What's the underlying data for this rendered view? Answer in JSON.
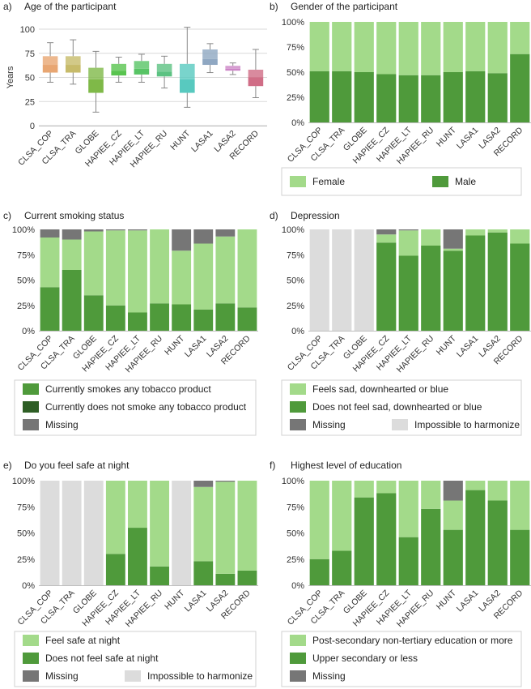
{
  "colors": {
    "female": "#a3da8a",
    "male": "#4f9a3b",
    "dark_green": "#2e5e25",
    "missing": "#767676",
    "impossible": "#dcdcdc",
    "grid": "#d9d9d9",
    "axis": "#bfbfbf",
    "legend_border": "#d0d0d0"
  },
  "box_colors": [
    "#e8a672",
    "#c7bb6a",
    "#7fb948",
    "#59c44f",
    "#58c465",
    "#5cc282",
    "#58c9bf",
    "#8fa7c2",
    "#cc84c6",
    "#d06d86"
  ],
  "chart_data": [
    {
      "id": "a",
      "type": "box",
      "panel_label": "a)",
      "title": "Age of the participant",
      "ylabel": "Years",
      "ylim": [
        0,
        100
      ],
      "yticks": [
        "0",
        "25",
        "50",
        "75",
        "100"
      ],
      "categories": [
        "CLSA_COP",
        "CLSA_TRA",
        "GLOBE",
        "HAPIEE_CZ",
        "HAPIEE_LT",
        "HAPIEE_RU",
        "HUNT",
        "LASA1",
        "LASA2",
        "RECORD"
      ],
      "boxes": [
        {
          "min": 45,
          "q1": 55,
          "median": 63,
          "q3": 72,
          "max": 86
        },
        {
          "min": 43,
          "q1": 55,
          "median": 63,
          "q3": 72,
          "max": 89
        },
        {
          "min": 14,
          "q1": 34,
          "median": 48,
          "q3": 60,
          "max": 77
        },
        {
          "min": 45,
          "q1": 52,
          "median": 57,
          "q3": 64,
          "max": 71
        },
        {
          "min": 45,
          "q1": 53,
          "median": 59,
          "q3": 67,
          "max": 74
        },
        {
          "min": 39,
          "q1": 51,
          "median": 56,
          "q3": 64,
          "max": 72
        },
        {
          "min": 19,
          "q1": 34,
          "median": 48,
          "q3": 64,
          "max": 102
        },
        {
          "min": 55,
          "q1": 63,
          "median": 69,
          "q3": 79,
          "max": 85
        },
        {
          "min": 53,
          "q1": 57,
          "median": 59,
          "q3": 62,
          "max": 65
        },
        {
          "min": 29,
          "q1": 41,
          "median": 50,
          "q3": 58,
          "max": 79
        }
      ]
    },
    {
      "id": "b",
      "type": "bar",
      "stacked": true,
      "panel_label": "b)",
      "title": "Gender of the participant",
      "ylim": [
        0,
        100
      ],
      "yticks": [
        "0%",
        "25%",
        "50%",
        "75%",
        "100%"
      ],
      "categories": [
        "CLSA_COP",
        "CLSA_TRA",
        "GLOBE",
        "HAPIEE_CZ",
        "HAPIEE_LT",
        "HAPIEE_RU",
        "HUNT",
        "LASA1",
        "LASA2",
        "RECORD"
      ],
      "series": [
        {
          "name": "Male",
          "color": "male",
          "values": [
            51,
            51,
            50,
            48,
            47,
            47,
            50,
            51,
            49,
            68
          ]
        },
        {
          "name": "Female",
          "color": "female",
          "values": [
            49,
            49,
            50,
            52,
            53,
            53,
            50,
            49,
            51,
            32
          ]
        }
      ],
      "legend": [
        {
          "name": "Female",
          "color": "female"
        },
        {
          "name": "Male",
          "color": "male"
        }
      ],
      "legend_columns": 2
    },
    {
      "id": "c",
      "type": "bar",
      "stacked": true,
      "panel_label": "c)",
      "title": "Current smoking status",
      "ylim": [
        0,
        100
      ],
      "yticks": [
        "0%",
        "25%",
        "50%",
        "75%",
        "100%"
      ],
      "categories": [
        "CLSA_COP",
        "CLSA_TRA",
        "GLOBE",
        "HAPIEE_CZ",
        "HAPIEE_LT",
        "HAPIEE_RU",
        "HUNT",
        "LASA1",
        "LASA2",
        "RECORD"
      ],
      "series": [
        {
          "name": "Currently smokes any tobacco product",
          "color": "male",
          "values": [
            43,
            60,
            35,
            25,
            18,
            27,
            26,
            21,
            27,
            23
          ]
        },
        {
          "name": "Currently does not smoke any tobacco product",
          "color": "female",
          "values": [
            49,
            30,
            63,
            74,
            81,
            73,
            53,
            65,
            66,
            77
          ]
        },
        {
          "name": "Missing",
          "color": "missing",
          "values": [
            8,
            10,
            2,
            1,
            1,
            0,
            21,
            14,
            7,
            0
          ]
        }
      ],
      "legend": [
        {
          "name": "Currently smokes any tobacco product",
          "color": "male"
        },
        {
          "name": "Currently does not smoke any tobacco product",
          "color": "dark_green"
        },
        {
          "name": "Missing",
          "color": "missing"
        }
      ],
      "legend_columns": 1
    },
    {
      "id": "d",
      "type": "bar",
      "stacked": true,
      "panel_label": "d)",
      "title": "Depression",
      "ylim": [
        0,
        100
      ],
      "yticks": [
        "0%",
        "25%",
        "50%",
        "75%",
        "100%"
      ],
      "categories": [
        "CLSA_COP",
        "CLSA_TRA",
        "GLOBE",
        "HAPIEE_CZ",
        "HAPIEE_LT",
        "HAPIEE_RU",
        "HUNT",
        "LASA1",
        "LASA2",
        "RECORD"
      ],
      "series": [
        {
          "name": "Does not feel sad, downhearted or blue",
          "color": "male",
          "values": [
            0,
            0,
            0,
            87,
            74,
            84,
            79,
            94,
            97,
            86
          ]
        },
        {
          "name": "Feels sad, downhearted or blue",
          "color": "female",
          "values": [
            0,
            0,
            0,
            8,
            25,
            16,
            2,
            6,
            3,
            14
          ]
        },
        {
          "name": "Missing",
          "color": "missing",
          "values": [
            0,
            0,
            0,
            5,
            1,
            0,
            19,
            0,
            0,
            0
          ]
        },
        {
          "name": "Impossible to harmonize",
          "color": "impossible",
          "values": [
            100,
            100,
            100,
            0,
            0,
            0,
            0,
            0,
            0,
            0
          ]
        }
      ],
      "legend": [
        {
          "name": "Feels sad, downhearted or blue",
          "color": "female"
        },
        {
          "name": "Does not feel sad, downhearted or blue",
          "color": "male"
        },
        {
          "name": "Missing",
          "color": "missing"
        },
        {
          "name": "Impossible to harmonize",
          "color": "impossible"
        }
      ],
      "legend_columns": 1,
      "legend_last_row_pair": true
    },
    {
      "id": "e",
      "type": "bar",
      "stacked": true,
      "panel_label": "e)",
      "title": "Do you feel safe at night",
      "ylim": [
        0,
        100
      ],
      "yticks": [
        "0%",
        "25%",
        "50%",
        "75%",
        "100%"
      ],
      "categories": [
        "CLSA_COP",
        "CLSA_TRA",
        "GLOBE",
        "HAPIEE_CZ",
        "HAPIEE_LT",
        "HAPIEE_RU",
        "HUNT",
        "LASA1",
        "LASA2",
        "RECORD"
      ],
      "series": [
        {
          "name": "Does not feel safe at night",
          "color": "male",
          "values": [
            0,
            0,
            0,
            30,
            55,
            18,
            0,
            23,
            11,
            14
          ]
        },
        {
          "name": "Feel safe at night",
          "color": "female",
          "values": [
            0,
            0,
            0,
            70,
            45,
            82,
            0,
            71,
            88,
            86
          ]
        },
        {
          "name": "Missing",
          "color": "missing",
          "values": [
            0,
            0,
            0,
            0,
            0,
            0,
            0,
            6,
            1,
            0
          ]
        },
        {
          "name": "Impossible to harmonize",
          "color": "impossible",
          "values": [
            100,
            100,
            100,
            0,
            0,
            0,
            100,
            0,
            0,
            0
          ]
        }
      ],
      "legend": [
        {
          "name": "Feel safe at night",
          "color": "female"
        },
        {
          "name": "Does not feel safe at night",
          "color": "male"
        },
        {
          "name": "Missing",
          "color": "missing"
        },
        {
          "name": "Impossible to harmonize",
          "color": "impossible"
        }
      ],
      "legend_columns": 1,
      "legend_last_row_pair": true
    },
    {
      "id": "f",
      "type": "bar",
      "stacked": true,
      "panel_label": "f)",
      "title": "Highest level of education",
      "ylim": [
        0,
        100
      ],
      "yticks": [
        "0%",
        "25%",
        "50%",
        "75%",
        "100%"
      ],
      "categories": [
        "CLSA_COP",
        "CLSA_TRA",
        "GLOBE",
        "HAPIEE_CZ",
        "HAPIEE_LT",
        "HAPIEE_RU",
        "HUNT",
        "LASA1",
        "LASA2",
        "RECORD"
      ],
      "series": [
        {
          "name": "Upper secondary or less",
          "color": "male",
          "values": [
            25,
            33,
            84,
            88,
            46,
            73,
            53,
            91,
            81,
            53
          ]
        },
        {
          "name": "Post-secondary non-tertiary education or more",
          "color": "female",
          "values": [
            75,
            67,
            16,
            12,
            54,
            27,
            28,
            9,
            19,
            47
          ]
        },
        {
          "name": "Missing",
          "color": "missing",
          "values": [
            0,
            0,
            0,
            0,
            0,
            0,
            19,
            0,
            0,
            0
          ]
        }
      ],
      "legend": [
        {
          "name": "Post-secondary non-tertiary education or more",
          "color": "female"
        },
        {
          "name": "Upper secondary or less",
          "color": "male"
        },
        {
          "name": "Missing",
          "color": "missing"
        }
      ],
      "legend_columns": 1
    }
  ]
}
